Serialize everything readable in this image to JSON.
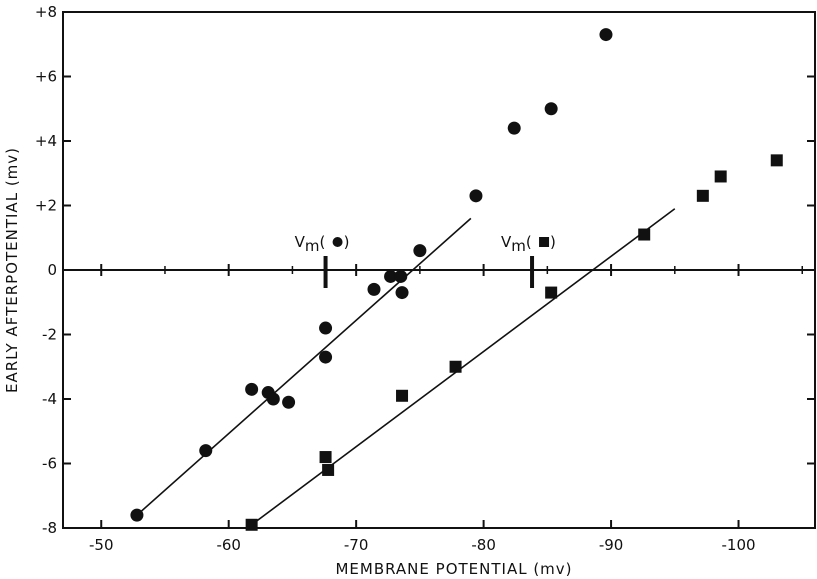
{
  "chart_data": {
    "type": "scatter",
    "title": "",
    "xlabel": "MEMBRANE POTENTIAL (mv)",
    "ylabel": "EARLY AFTERPOTENTIAL (mv)",
    "x_reversed": true,
    "xlim": [
      -47,
      -106
    ],
    "ylim": [
      -8,
      8
    ],
    "x_ticks": [
      -50,
      -60,
      -70,
      -80,
      -90,
      -100
    ],
    "x_tick_labels": [
      "-50",
      "-60",
      "-70",
      "-80",
      "-90",
      "-100"
    ],
    "y_ticks": [
      -8,
      -6,
      -4,
      -2,
      0,
      2,
      4,
      6,
      8
    ],
    "y_tick_labels": [
      "-8",
      "-6",
      "-4",
      "-2",
      "0",
      "+2",
      "+4",
      "+6",
      "+8"
    ],
    "grid": false,
    "color": "#111111",
    "series": [
      {
        "marker": "circle",
        "points": [
          [
            -52.8,
            -7.6
          ],
          [
            -58.2,
            -5.6
          ],
          [
            -61.8,
            -3.7
          ],
          [
            -63.1,
            -3.8
          ],
          [
            -63.5,
            -4.0
          ],
          [
            -64.7,
            -4.1
          ],
          [
            -67.6,
            -1.8
          ],
          [
            -67.6,
            -2.7
          ],
          [
            -71.4,
            -0.6
          ],
          [
            -72.7,
            -0.2
          ],
          [
            -73.5,
            -0.2
          ],
          [
            -73.6,
            -0.7
          ],
          [
            -75.0,
            0.6
          ],
          [
            -79.4,
            2.3
          ],
          [
            -82.4,
            4.4
          ],
          [
            -85.3,
            5.0
          ],
          [
            -89.6,
            7.3
          ]
        ],
        "fit_line": [
          [
            -52.8,
            -7.6
          ],
          [
            -79.0,
            1.6
          ]
        ]
      },
      {
        "marker": "square",
        "points": [
          [
            -61.8,
            -7.9
          ],
          [
            -67.6,
            -5.8
          ],
          [
            -67.8,
            -6.2
          ],
          [
            -73.6,
            -3.9
          ],
          [
            -77.8,
            -3.0
          ],
          [
            -85.3,
            -0.7
          ],
          [
            -92.6,
            1.1
          ],
          [
            -97.2,
            2.3
          ],
          [
            -98.6,
            2.9
          ],
          [
            -103.0,
            3.4
          ]
        ],
        "fit_line": [
          [
            -61.8,
            -7.9
          ],
          [
            -95.0,
            1.9
          ]
        ]
      }
    ],
    "annotations": [
      {
        "marker": "circle",
        "prefix": "V",
        "subscript": "m",
        "x": -67.6
      },
      {
        "marker": "square",
        "prefix": "V",
        "subscript": "m",
        "x": -83.8
      }
    ]
  }
}
